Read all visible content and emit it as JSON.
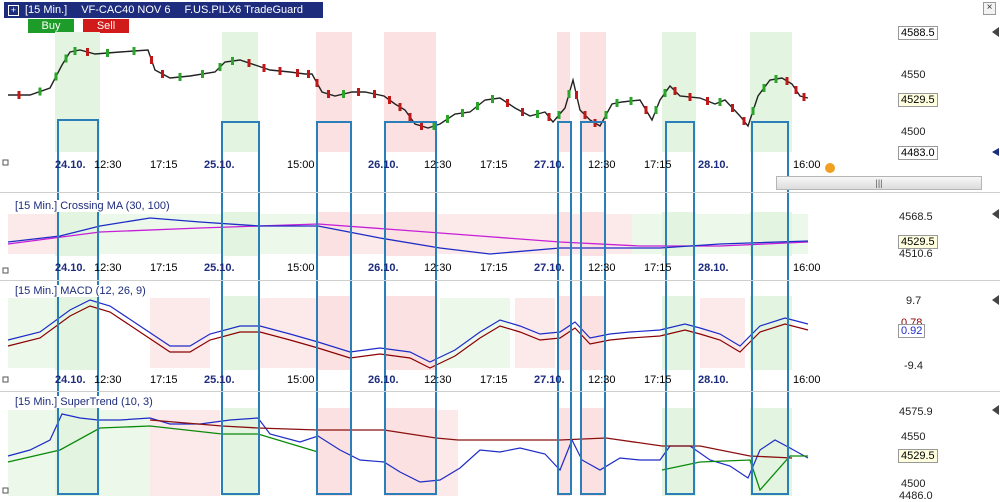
{
  "window": {
    "interval_label": "[15 Min.]",
    "instrument_label": "VF-CAC40 NOV 6",
    "strategy_label": "F.US.PILX6 TradeGuard",
    "buy_label": "Buy",
    "sell_label": "Sell",
    "close_label": "×"
  },
  "main_chart": {
    "price_axis": [
      "4588.5",
      "4550",
      "4529.5",
      "4500",
      "4483.0"
    ],
    "last_price": "4529.5",
    "hi_tag": "4588.5",
    "lo_tag": "4483.0",
    "time_labels": [
      "24.10.",
      "12:30",
      "17:15",
      "25.10.",
      "15:00",
      "26.10.",
      "12:30",
      "17:15",
      "27.10.",
      "12:30",
      "17:15",
      "28.10.",
      "16:00"
    ],
    "bold_dates": [
      "24.10.",
      "25.10.",
      "26.10.",
      "27.10.",
      "28.10."
    ],
    "scroll_thumb": "|||"
  },
  "panels": [
    {
      "header": "[15 Min.] Crossing MA  (30, 100)",
      "axis": [
        "4568.5",
        "4529.5",
        "4510.6"
      ],
      "tag": "4529.5"
    },
    {
      "header": "[15 Min.] MACD  (12, 26, 9)",
      "axis": [
        "9.7",
        "0.78",
        "0.92",
        "-9.4"
      ],
      "tag": "0.92"
    },
    {
      "header": "[15 Min.] SuperTrend  (10, 3)",
      "axis": [
        "4575.9",
        "4550",
        "4529.5",
        "4500",
        "4486.0"
      ],
      "tag": "4529.5"
    }
  ],
  "colors": {
    "title_bg": "#1d2c7c",
    "buy_zone": "#e3f5e1",
    "sell_zone": "#fbe1e1",
    "highlight_box": "#2a7fb8"
  }
}
